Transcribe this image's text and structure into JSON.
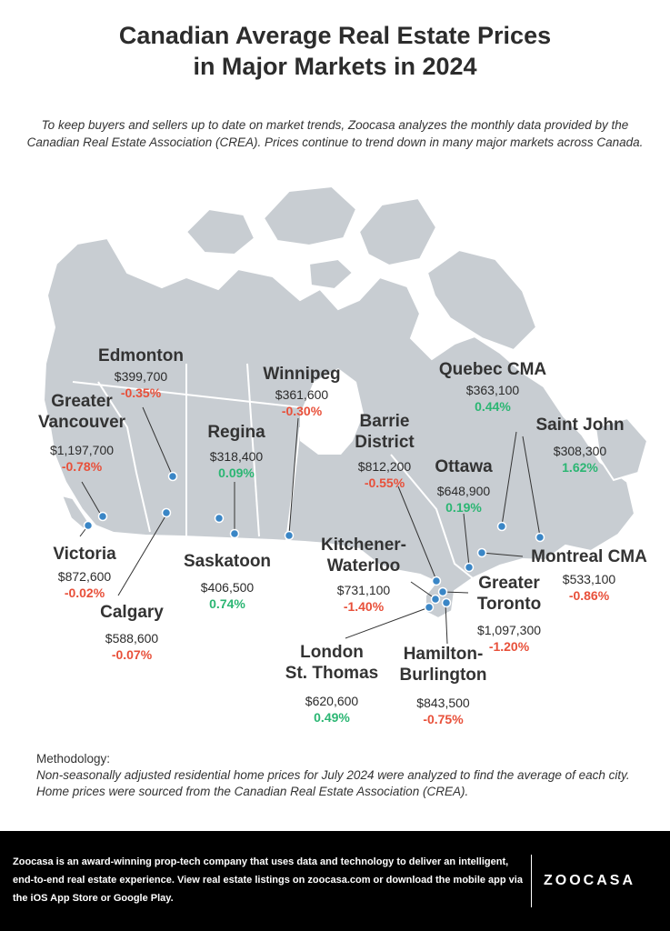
{
  "title": {
    "line1": "Canadian Average Real Estate Prices",
    "line2": "in Major Markets in 2024"
  },
  "intro": "To keep buyers and sellers up to date on market trends, Zoocasa analyzes the monthly data provided by the Canadian Real Estate Association (CREA). Prices continue to trend down in many major markets across Canada.",
  "colors": {
    "map_fill": "#c8cdd2",
    "map_border": "#ffffff",
    "marker": "#3a86c6",
    "negative": "#e8503a",
    "positive": "#2bb673",
    "footer_bg": "#000000"
  },
  "cities": [
    {
      "key": "edmonton",
      "name_lines": [
        "Edmonton"
      ],
      "price": "$399,700",
      "change": "-0.35%",
      "trend": "negative"
    },
    {
      "key": "winnipeg",
      "name_lines": [
        "Winnipeg"
      ],
      "price": "$361,600",
      "change": "-0.30%",
      "trend": "negative"
    },
    {
      "key": "quebec",
      "name_lines": [
        "Quebec CMA"
      ],
      "price": "$363,100",
      "change": "0.44%",
      "trend": "positive"
    },
    {
      "key": "vancouver",
      "name_lines": [
        "Greater",
        "Vancouver"
      ],
      "price": "$1,197,700",
      "change": "-0.78%",
      "trend": "negative"
    },
    {
      "key": "regina",
      "name_lines": [
        "Regina"
      ],
      "price": "$318,400",
      "change": "0.09%",
      "trend": "positive"
    },
    {
      "key": "barrie",
      "name_lines": [
        "Barrie",
        "District"
      ],
      "price": "$812,200",
      "change": "-0.55%",
      "trend": "negative"
    },
    {
      "key": "saintjohn",
      "name_lines": [
        "Saint John"
      ],
      "price": "$308,300",
      "change": "1.62%",
      "trend": "positive"
    },
    {
      "key": "ottawa",
      "name_lines": [
        "Ottawa"
      ],
      "price": "$648,900",
      "change": "0.19%",
      "trend": "positive"
    },
    {
      "key": "victoria",
      "name_lines": [
        "Victoria"
      ],
      "price": "$872,600",
      "change": "-0.02%",
      "trend": "negative"
    },
    {
      "key": "saskatoon",
      "name_lines": [
        "Saskatoon"
      ],
      "price": "$406,500",
      "change": "0.74%",
      "trend": "positive"
    },
    {
      "key": "kitchener",
      "name_lines": [
        "Kitchener-",
        "Waterloo"
      ],
      "price": "$731,100",
      "change": "-1.40%",
      "trend": "negative"
    },
    {
      "key": "montreal",
      "name_lines": [
        "Montreal CMA"
      ],
      "price": "$533,100",
      "change": "-0.86%",
      "trend": "negative"
    },
    {
      "key": "toronto",
      "name_lines": [
        "Greater",
        "Toronto"
      ],
      "price": "$1,097,300",
      "change": "-1.20%",
      "trend": "negative"
    },
    {
      "key": "calgary",
      "name_lines": [
        "Calgary"
      ],
      "price": "$588,600",
      "change": "-0.07%",
      "trend": "negative"
    },
    {
      "key": "london",
      "name_lines": [
        "London",
        "St. Thomas"
      ],
      "price": "$620,600",
      "change": "0.49%",
      "trend": "positive"
    },
    {
      "key": "hamilton",
      "name_lines": [
        "Hamilton-",
        "Burlington"
      ],
      "price": "$843,500",
      "change": "-0.75%",
      "trend": "negative"
    }
  ],
  "methodology": {
    "title": "Methodology:",
    "body": "Non-seasonally adjusted residential home prices for July 2024 were analyzed to find the average of each city. Home prices were sourced from the Canadian Real Estate Association (CREA)."
  },
  "footer": {
    "text": "Zoocasa is an award-winning prop-tech company that uses data and technology to deliver an intelligent, end-to-end real estate experience. View real estate listings on zoocasa.com or download the mobile app via the iOS App Store or Google Play.",
    "logo": "ZOOCASA"
  }
}
